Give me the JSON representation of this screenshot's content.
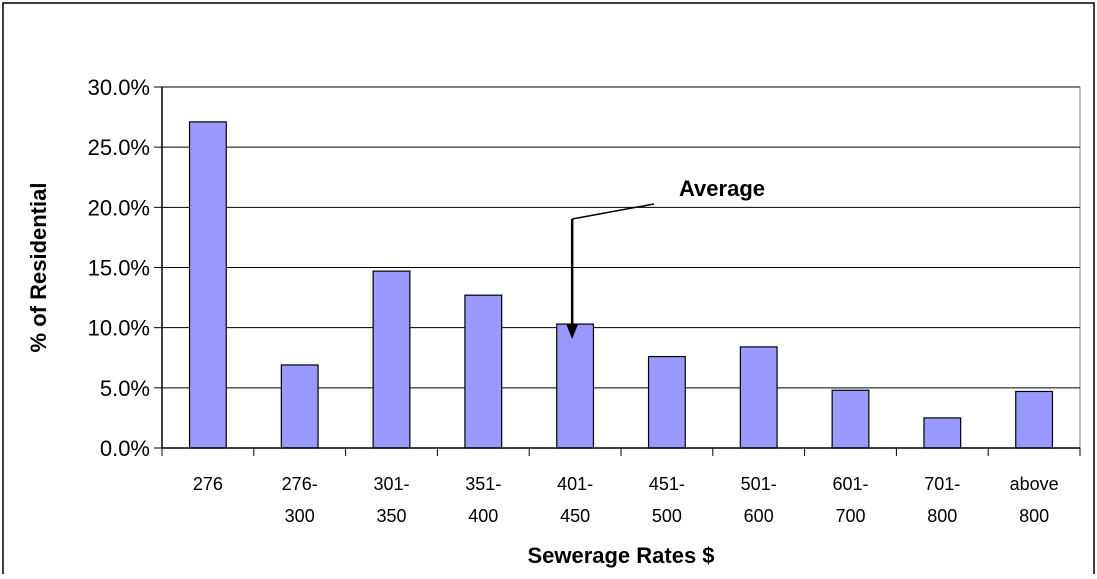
{
  "chart_data": {
    "type": "bar",
    "title": "",
    "xlabel": "Sewerage Rates $",
    "ylabel": "% of Residential",
    "ylim": [
      0,
      30
    ],
    "y_ticks": [
      "0.0%",
      "5.0%",
      "10.0%",
      "15.0%",
      "20.0%",
      "25.0%",
      "30.0%"
    ],
    "grid": "horizontal",
    "legend": "none",
    "categories": [
      [
        "276"
      ],
      [
        "276-",
        "300"
      ],
      [
        "301-",
        "350"
      ],
      [
        "351-",
        "400"
      ],
      [
        "401-",
        "450"
      ],
      [
        "451-",
        "500"
      ],
      [
        "501-",
        "600"
      ],
      [
        "601-",
        "700"
      ],
      [
        "701-",
        "800"
      ],
      [
        "above",
        "800"
      ]
    ],
    "values": [
      27.1,
      6.9,
      14.7,
      12.7,
      10.3,
      7.6,
      8.4,
      4.8,
      2.5,
      4.7
    ],
    "bar_color": "#9999ff",
    "annotation": {
      "text": "Average",
      "category_index": 4
    }
  }
}
